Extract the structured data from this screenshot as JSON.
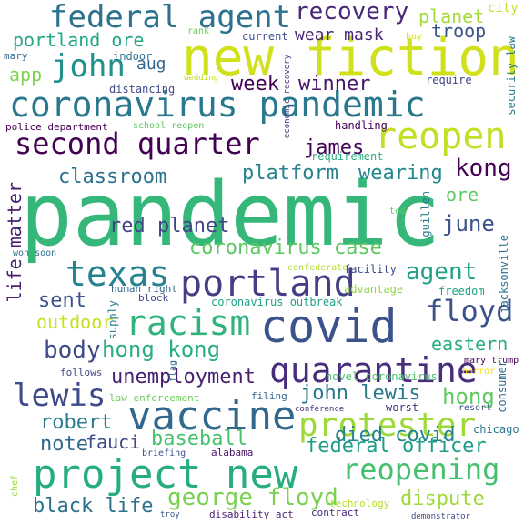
{
  "words": [
    {
      "text": "pandemic",
      "color": "#35b779"
    },
    {
      "text": "new fiction",
      "color": "#d0e11c"
    },
    {
      "text": "coronavirus pandemic",
      "color": "#2a788e"
    },
    {
      "text": "covid",
      "color": "#3b528b"
    },
    {
      "text": "project new",
      "color": "#27ad81"
    },
    {
      "text": "vaccine",
      "color": "#31688e"
    },
    {
      "text": "federal agent",
      "color": "#2c728e"
    },
    {
      "text": "second quarter",
      "color": "#440154"
    },
    {
      "text": "reopen",
      "color": "#c2df23"
    },
    {
      "text": "portland",
      "color": "#433e85"
    },
    {
      "text": "texas",
      "color": "#26828e"
    },
    {
      "text": "racism",
      "color": "#2fb47c"
    },
    {
      "text": "quarantine",
      "color": "#472d7b"
    },
    {
      "text": "protester",
      "color": "#9dd93b"
    },
    {
      "text": "lewis",
      "color": "#3e4a89"
    },
    {
      "text": "reopening",
      "color": "#46c06f"
    },
    {
      "text": "george floyd",
      "color": "#7ad151"
    },
    {
      "text": "john",
      "color": "#21918c"
    },
    {
      "text": "coronavirus case",
      "color": "#5ec962"
    },
    {
      "text": "floyd",
      "color": "#3b528b"
    },
    {
      "text": "hong kong",
      "color": "#29af7f"
    },
    {
      "text": "recovery",
      "color": "#482878"
    },
    {
      "text": "kong",
      "color": "#440154"
    },
    {
      "text": "agent",
      "color": "#1fa187"
    },
    {
      "text": "body",
      "color": "#3e4a89"
    },
    {
      "text": "unemployment",
      "color": "#482173"
    },
    {
      "text": "federal officer",
      "color": "#1f9e89"
    },
    {
      "text": "platform",
      "color": "#26828e"
    },
    {
      "text": "week",
      "color": "#440154"
    },
    {
      "text": "winner",
      "color": "#481467"
    },
    {
      "text": "classroom",
      "color": "#2c728e"
    },
    {
      "text": "wearing",
      "color": "#23898e"
    },
    {
      "text": "james",
      "color": "#450559"
    },
    {
      "text": "june",
      "color": "#3b528b"
    },
    {
      "text": "hong",
      "color": "#5ec962"
    },
    {
      "text": "john lewis",
      "color": "#2a788e"
    },
    {
      "text": "eastern",
      "color": "#27ad81"
    },
    {
      "text": "red planet",
      "color": "#414487"
    },
    {
      "text": "sent",
      "color": "#3b528b"
    },
    {
      "text": "baseball",
      "color": "#4ac16d"
    },
    {
      "text": "died covid",
      "color": "#25848e"
    },
    {
      "text": "dispute",
      "color": "#9dd93b"
    },
    {
      "text": "note",
      "color": "#31688e"
    },
    {
      "text": "robert",
      "color": "#287c8e"
    },
    {
      "text": "fauci",
      "color": "#3e4a89"
    },
    {
      "text": "black life",
      "color": "#2d708e"
    },
    {
      "text": "life matter",
      "color": "#481f70"
    },
    {
      "text": "outdoor",
      "color": "#c8e020"
    },
    {
      "text": "portland ore",
      "color": "#22a785"
    },
    {
      "text": "wear mask",
      "color": "#482475"
    },
    {
      "text": "planet",
      "color": "#a2da37"
    },
    {
      "text": "troop",
      "color": "#3b528b"
    },
    {
      "text": "app",
      "color": "#7fd34e"
    },
    {
      "text": "aug",
      "color": "#31688e"
    },
    {
      "text": "ore",
      "color": "#5ec962"
    },
    {
      "text": "city",
      "color": "#c2df23"
    },
    {
      "text": "mary",
      "color": "#31688e"
    },
    {
      "text": "indoor",
      "color": "#2c728e"
    },
    {
      "text": "rank",
      "color": "#6ccd5a"
    },
    {
      "text": "current",
      "color": "#3b528b"
    },
    {
      "text": "buy",
      "color": "#d8e219"
    },
    {
      "text": "security law",
      "color": "#2a788e"
    },
    {
      "text": "require",
      "color": "#404387"
    },
    {
      "text": "economic recovery",
      "color": "#482878"
    },
    {
      "text": "wedding",
      "color": "#c2df23"
    },
    {
      "text": "distancing",
      "color": "#3e4a89"
    },
    {
      "text": "police department",
      "color": "#440154"
    },
    {
      "text": "school reopen",
      "color": "#5ec962"
    },
    {
      "text": "handling",
      "color": "#440154"
    },
    {
      "text": "requirement",
      "color": "#29af7f"
    },
    {
      "text": "ted",
      "color": "#5ec962"
    },
    {
      "text": "guillen",
      "color": "#2a788e"
    },
    {
      "text": "won soon",
      "color": "#2d708e"
    },
    {
      "text": "confederate",
      "color": "#b5de2b"
    },
    {
      "text": "facility",
      "color": "#3e4a89"
    },
    {
      "text": "advantage",
      "color": "#8fd744"
    },
    {
      "text": "freedom",
      "color": "#1fa187"
    },
    {
      "text": "jacksonville",
      "color": "#2c728e"
    },
    {
      "text": "human right",
      "color": "#31688e"
    },
    {
      "text": "block",
      "color": "#3e4a89"
    },
    {
      "text": "supply",
      "color": "#26828e"
    },
    {
      "text": "coronavirus outbreak",
      "color": "#1fa187"
    },
    {
      "text": "mary trump",
      "color": "#440154"
    },
    {
      "text": "horror",
      "color": "#ffe200"
    },
    {
      "text": "novel coronavirus",
      "color": "#4ac16d"
    },
    {
      "text": "flag",
      "color": "#31688e"
    },
    {
      "text": "follows",
      "color": "#3e4a89"
    },
    {
      "text": "law enforcement",
      "color": "#6ccd5a"
    },
    {
      "text": "filing",
      "color": "#31688e"
    },
    {
      "text": "worst",
      "color": "#46337e"
    },
    {
      "text": "resort",
      "color": "#3b528b"
    },
    {
      "text": "consumer",
      "color": "#31688e"
    },
    {
      "text": "conference",
      "color": "#472d7b"
    },
    {
      "text": "chicago",
      "color": "#2a788e"
    },
    {
      "text": "briefing",
      "color": "#3b528b"
    },
    {
      "text": "alabama",
      "color": "#481467"
    },
    {
      "text": "chef",
      "color": "#9dd93b"
    },
    {
      "text": "technology",
      "color": "#b5de2b"
    },
    {
      "text": "troy",
      "color": "#3b528b"
    },
    {
      "text": "disability act",
      "color": "#481f70"
    },
    {
      "text": "contract",
      "color": "#482878"
    },
    {
      "text": "demonstrator",
      "color": "#3e4a89"
    }
  ]
}
